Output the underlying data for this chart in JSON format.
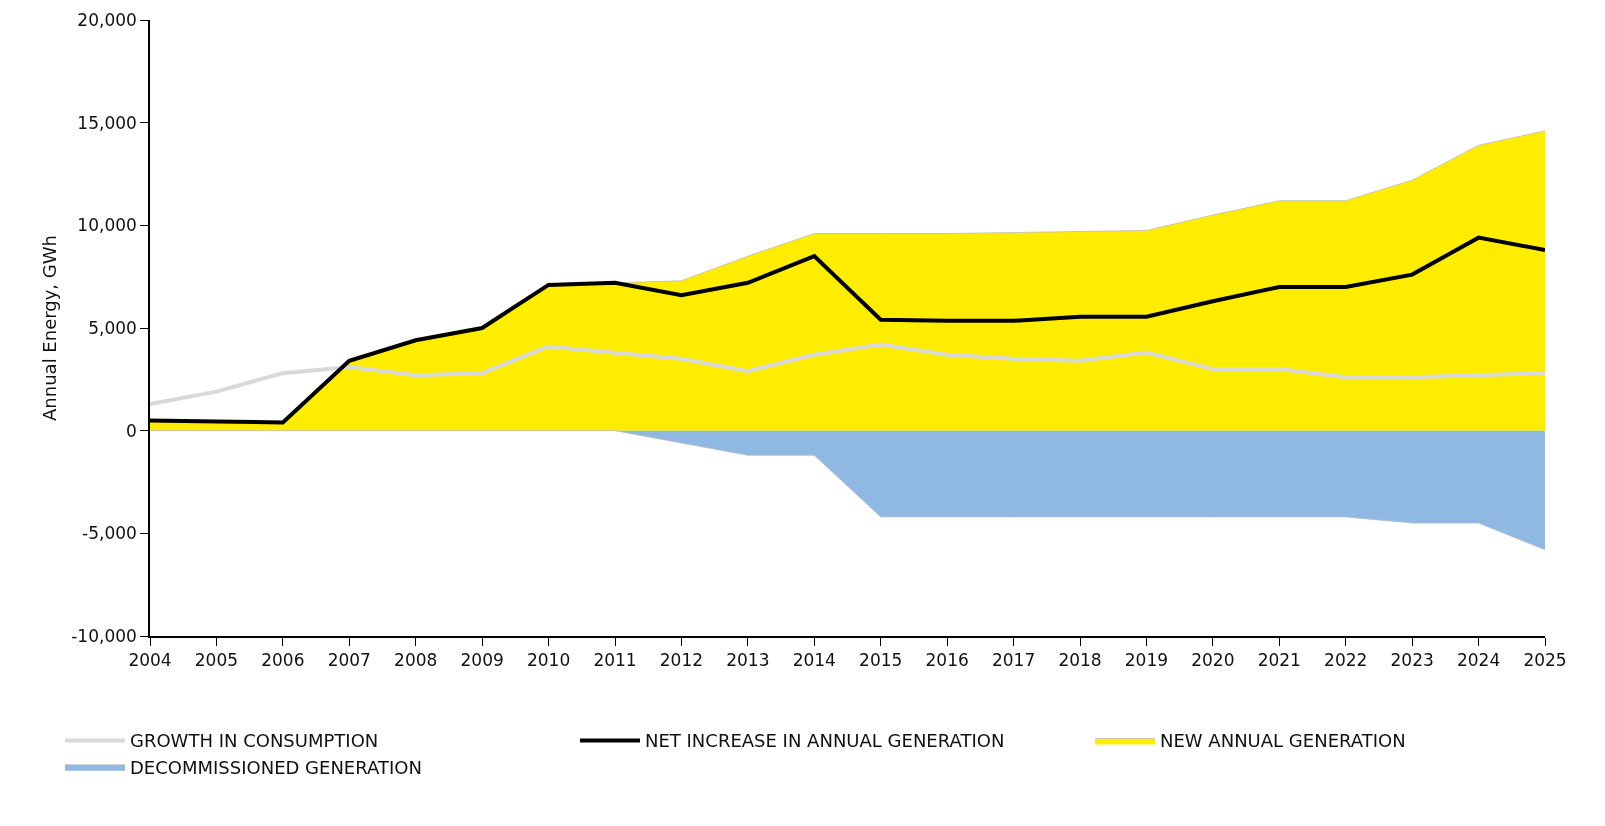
{
  "chart_data": {
    "type": "area",
    "ylabel": "Annual Energy, GWh",
    "x": [
      2004,
      2005,
      2006,
      2007,
      2008,
      2009,
      2010,
      2011,
      2012,
      2013,
      2014,
      2015,
      2016,
      2017,
      2018,
      2019,
      2020,
      2021,
      2022,
      2023,
      2024,
      2025
    ],
    "series": [
      {
        "name": "NEW ANNUAL GENERATION",
        "type": "area",
        "color": "#ffed00",
        "values": [
          500,
          450,
          400,
          3400,
          4400,
          5000,
          7100,
          7200,
          7300,
          8500,
          9600,
          9600,
          9600,
          9650,
          9700,
          9750,
          10500,
          11200,
          11200,
          12200,
          13900,
          14600
        ]
      },
      {
        "name": "DECOMMISSIONED GENERATION",
        "type": "area",
        "color": "#8fb9e3",
        "values": [
          0,
          0,
          0,
          0,
          0,
          0,
          0,
          0,
          -600,
          -1200,
          -1200,
          -4200,
          -4200,
          -4200,
          -4200,
          -4200,
          -4200,
          -4200,
          -4200,
          -4500,
          -4500,
          -5800
        ]
      },
      {
        "name": "GROWTH IN CONSUMPTION",
        "type": "line",
        "color": "#d9d9d9",
        "values": [
          1300,
          1900,
          2800,
          3100,
          2700,
          2800,
          4100,
          3800,
          3500,
          2900,
          3700,
          4200,
          3700,
          3500,
          3400,
          3800,
          3000,
          3000,
          2600,
          2600,
          2700,
          2800
        ]
      },
      {
        "name": "NET INCREASE IN ANNUAL GENERATION",
        "type": "line",
        "color": "#000000",
        "values": [
          500,
          450,
          400,
          3400,
          4400,
          5000,
          7100,
          7200,
          6600,
          7200,
          8500,
          5400,
          5350,
          5350,
          5550,
          5550,
          6300,
          7000,
          7000,
          7600,
          9400,
          8800
        ]
      }
    ],
    "xlim": [
      2004,
      2025
    ],
    "xticks": [
      2004,
      2005,
      2006,
      2007,
      2008,
      2009,
      2010,
      2011,
      2012,
      2013,
      2014,
      2015,
      2016,
      2017,
      2018,
      2019,
      2020,
      2021,
      2022,
      2023,
      2024,
      2025
    ],
    "ylim": [
      -10000,
      20000
    ],
    "yticks": [
      {
        "value": -10000,
        "label": "-10,000"
      },
      {
        "value": -5000,
        "label": "-5,000"
      },
      0,
      {
        "value": 5000,
        "label": "5,000"
      },
      {
        "value": 10000,
        "label": "10,000"
      },
      {
        "value": 15000,
        "label": "15,000"
      },
      {
        "value": 20000,
        "label": "20,000"
      }
    ],
    "grid": false,
    "legend": "bottom",
    "marker": "none",
    "line_style": "solid"
  }
}
